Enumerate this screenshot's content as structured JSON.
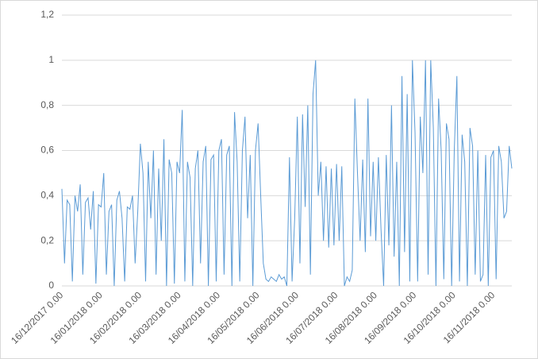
{
  "chart_data": {
    "type": "line",
    "categories": [
      "16/12/2017 0.00",
      null,
      null,
      null,
      null,
      null,
      null,
      null,
      null,
      null,
      null,
      null,
      null,
      null,
      null,
      "16/01/2018 0.00",
      null,
      null,
      null,
      null,
      null,
      null,
      null,
      null,
      null,
      null,
      null,
      null,
      null,
      null,
      "16/02/2018 0.00",
      null,
      null,
      null,
      null,
      null,
      null,
      null,
      null,
      null,
      null,
      null,
      null,
      null,
      null,
      "16/03/2018 0.00",
      null,
      null,
      null,
      null,
      null,
      null,
      null,
      null,
      null,
      null,
      null,
      null,
      null,
      null,
      "16/04/2018 0.00",
      null,
      null,
      null,
      null,
      null,
      null,
      null,
      null,
      null,
      null,
      null,
      null,
      null,
      null,
      "16/05/2018 0.00",
      null,
      null,
      null,
      null,
      null,
      null,
      null,
      null,
      null,
      null,
      null,
      null,
      null,
      null,
      "16/06/2018 0.00",
      null,
      null,
      null,
      null,
      null,
      null,
      null,
      null,
      null,
      null,
      null,
      null,
      null,
      null,
      "16/07/2018 0.00",
      null,
      null,
      null,
      null,
      null,
      null,
      null,
      null,
      null,
      null,
      null,
      null,
      null,
      null,
      "16/08/2018 0.00",
      null,
      null,
      null,
      null,
      null,
      null,
      null,
      null,
      null,
      null,
      null,
      null,
      null,
      null,
      "16/09/2018 0.00",
      null,
      null,
      null,
      null,
      null,
      null,
      null,
      null,
      null,
      null,
      null,
      null,
      null,
      null,
      "16/10/2018 0.00",
      null,
      null,
      null,
      null,
      null,
      null,
      null,
      null,
      null,
      null,
      null,
      null,
      null,
      null,
      "16/11/2018 0.00",
      null,
      null,
      null,
      null,
      null,
      null,
      null
    ],
    "values": [
      0.43,
      0.1,
      0.38,
      0.36,
      0.02,
      0.4,
      0.33,
      0.45,
      0.05,
      0.37,
      0.39,
      0.25,
      0.42,
      0.01,
      0.36,
      0.35,
      0.5,
      0.05,
      0.33,
      0.36,
      0.0,
      0.38,
      0.42,
      0.3,
      0.02,
      0.35,
      0.34,
      0.4,
      0.1,
      0.33,
      0.63,
      0.5,
      0.02,
      0.55,
      0.3,
      0.6,
      0.05,
      0.52,
      0.2,
      0.65,
      0.0,
      0.56,
      0.5,
      0.01,
      0.55,
      0.5,
      0.78,
      0.02,
      0.55,
      0.48,
      0.0,
      0.52,
      0.6,
      0.1,
      0.55,
      0.62,
      0.0,
      0.56,
      0.58,
      0.02,
      0.6,
      0.65,
      0.05,
      0.58,
      0.62,
      0.0,
      0.77,
      0.55,
      0.02,
      0.6,
      0.75,
      0.3,
      0.58,
      0.0,
      0.6,
      0.72,
      0.4,
      0.1,
      0.03,
      0.02,
      0.04,
      0.03,
      0.02,
      0.05,
      0.03,
      0.04,
      0.0,
      0.57,
      0.02,
      0.3,
      0.75,
      0.1,
      0.76,
      0.35,
      0.8,
      0.05,
      0.85,
      1.0,
      0.4,
      0.55,
      0.2,
      0.53,
      0.17,
      0.52,
      0.18,
      0.54,
      0.2,
      0.53,
      0.0,
      0.04,
      0.02,
      0.07,
      0.83,
      0.5,
      0.2,
      0.56,
      0.15,
      0.83,
      0.22,
      0.55,
      0.2,
      0.57,
      0.25,
      0.0,
      0.58,
      0.18,
      0.8,
      0.13,
      0.55,
      0.0,
      0.93,
      0.15,
      0.85,
      0.02,
      1.0,
      0.68,
      0.02,
      0.75,
      0.5,
      1.0,
      0.05,
      1.0,
      0.7,
      0.0,
      0.83,
      0.6,
      0.03,
      0.72,
      0.65,
      0.0,
      0.6,
      0.93,
      0.02,
      0.67,
      0.55,
      0.0,
      0.7,
      0.62,
      0.05,
      0.6,
      0.02,
      0.05,
      0.58,
      0.0,
      0.57,
      0.6,
      0.03,
      0.62,
      0.55,
      0.3,
      0.33,
      0.62,
      0.52
    ],
    "color": "#5b9bd5",
    "ylim": [
      0,
      1.2
    ],
    "yticks": [
      0,
      {
        "value": 0.2,
        "label": "0,2"
      },
      {
        "value": 0.4,
        "label": "0,4"
      },
      {
        "value": 0.6,
        "label": "0,6"
      },
      {
        "value": 0.8,
        "label": "0,8"
      },
      1,
      {
        "value": 1.2,
        "label": "1,2"
      }
    ],
    "grid": true
  }
}
